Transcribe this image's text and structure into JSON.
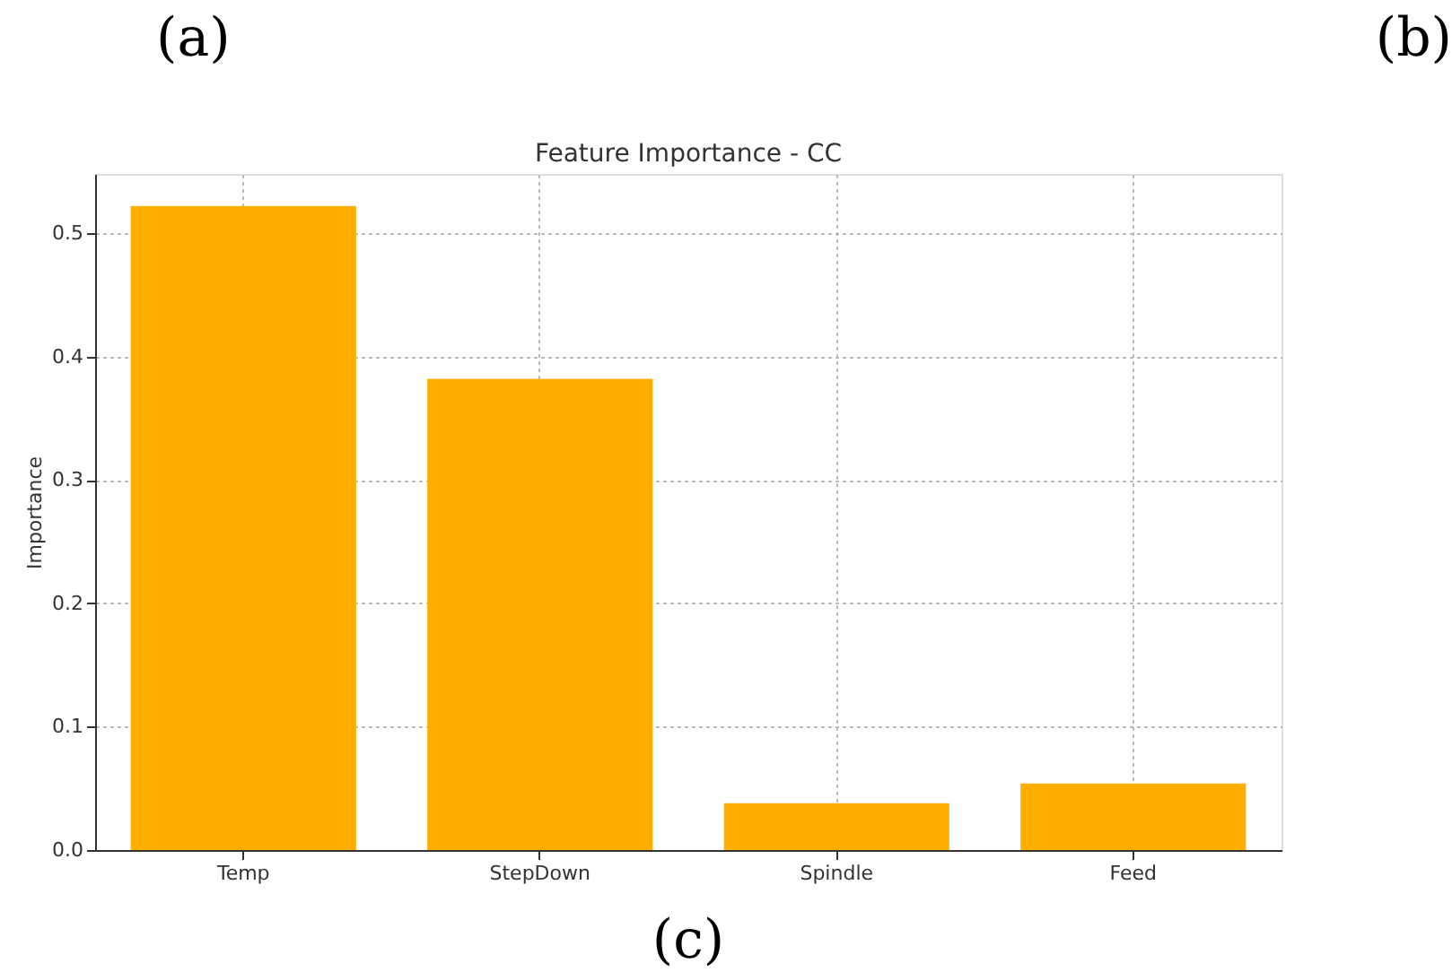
{
  "chart_data": {
    "type": "bar",
    "title": "Feature Importance - CC",
    "ylabel": "Importance",
    "categories": [
      "Temp",
      "StepDown",
      "Spindle",
      "Feed"
    ],
    "values": [
      0.522,
      0.382,
      0.038,
      0.054
    ],
    "color": "#ffae00",
    "ylim": [
      0,
      0.548
    ],
    "yticks": [
      {
        "value": 0,
        "label": "0.0"
      },
      0.1,
      0.2,
      0.3,
      0.4,
      0.5
    ],
    "grid": true,
    "annotations": [
      "(a)",
      "(b)",
      "(c)"
    ]
  }
}
